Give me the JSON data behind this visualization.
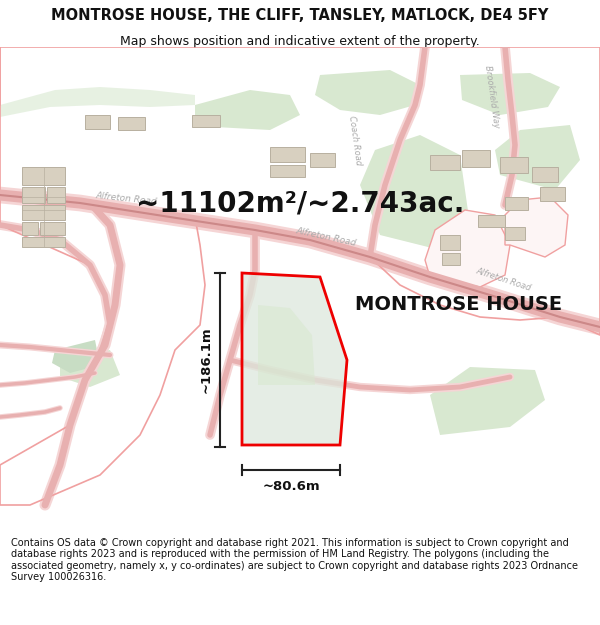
{
  "title": "MONTROSE HOUSE, THE CLIFF, TANSLEY, MATLOCK, DE4 5FY",
  "subtitle": "Map shows position and indicative extent of the property.",
  "area_text": "~11102m²/~2.743ac.",
  "property_label": "MONTROSE HOUSE",
  "dim_height": "~186.1m",
  "dim_width": "~80.6m",
  "footer": "Contains OS data © Crown copyright and database right 2021. This information is subject to Crown copyright and database rights 2023 and is reproduced with the permission of HM Land Registry. The polygons (including the associated geometry, namely x, y co-ordinates) are subject to Crown copyright and database rights 2023 Ordnance Survey 100026316.",
  "title_fontsize": 10.5,
  "subtitle_fontsize": 9,
  "area_fontsize": 20,
  "property_label_fontsize": 14,
  "footer_fontsize": 7.0,
  "map_bg": "#f8f8f6",
  "road_fill": "#fce8e8",
  "road_outline": "#e8a0a0",
  "road_center_line": "#d08080",
  "green_area": "#d8e8d0",
  "green_area2": "#c8ddc0",
  "building_fill": "#d8d0c0",
  "building_outline": "#b8b0a0",
  "property_fill": "#dde8dd",
  "property_outline": "#ee0000",
  "dim_line_color": "#222222",
  "text_color": "#111111",
  "road_label_color": "#aaaaaa",
  "boundary_line": "#f0a0a0",
  "white": "#ffffff"
}
